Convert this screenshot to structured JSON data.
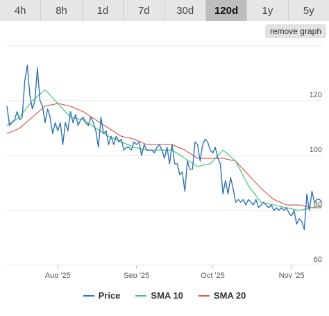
{
  "tabs": [
    {
      "label": "4h",
      "active": false
    },
    {
      "label": "8h",
      "active": false
    },
    {
      "label": "1d",
      "active": false
    },
    {
      "label": "7d",
      "active": false
    },
    {
      "label": "30d",
      "active": false
    },
    {
      "label": "120d",
      "active": true
    },
    {
      "label": "1y",
      "active": false
    },
    {
      "label": "5y",
      "active": false
    }
  ],
  "remove_graph_label": "remove graph",
  "chart_data": {
    "type": "line",
    "title": "",
    "xlabel": "",
    "ylabel": "",
    "ylim": [
      60,
      140
    ],
    "y_ticks": [
      60,
      80,
      100,
      120
    ],
    "x_ticks": [
      {
        "label": "Aug '25",
        "day": 20
      },
      {
        "label": "Sep '25",
        "day": 51
      },
      {
        "label": "Oct '25",
        "day": 81
      },
      {
        "label": "Nov '25",
        "day": 112
      }
    ],
    "x_range_days": [
      0,
      124
    ],
    "grid": true,
    "legend_position": "bottom",
    "series": [
      {
        "name": "Price",
        "color": "#2f72b4",
        "x": [
          0,
          1,
          2,
          3,
          4,
          5,
          6,
          7,
          8,
          9,
          10,
          11,
          12,
          13,
          14,
          15,
          16,
          17,
          18,
          19,
          20,
          21,
          22,
          23,
          24,
          25,
          26,
          27,
          28,
          29,
          30,
          31,
          32,
          33,
          34,
          35,
          36,
          37,
          38,
          39,
          40,
          41,
          42,
          43,
          44,
          45,
          46,
          47,
          48,
          49,
          50,
          51,
          52,
          53,
          54,
          55,
          56,
          57,
          58,
          59,
          60,
          61,
          62,
          63,
          64,
          65,
          66,
          67,
          68,
          69,
          70,
          71,
          72,
          73,
          74,
          75,
          76,
          77,
          78,
          79,
          80,
          81,
          82,
          83,
          84,
          85,
          86,
          87,
          88,
          89,
          90,
          91,
          92,
          93,
          94,
          95,
          96,
          97,
          98,
          99,
          100,
          101,
          102,
          103,
          104,
          105,
          106,
          107,
          108,
          109,
          110,
          111,
          112,
          113,
          114,
          115,
          116,
          117,
          118,
          119,
          120,
          121,
          122,
          123,
          124
        ],
        "values": [
          118,
          111,
          112,
          113,
          116,
          113,
          114,
          127,
          133,
          122,
          117,
          120,
          132,
          120,
          118,
          112,
          117,
          114,
          108,
          112,
          109,
          112,
          104,
          112,
          109,
          116,
          112,
          115,
          111,
          113,
          114,
          112,
          111,
          114,
          112,
          109,
          103,
          114,
          108,
          109,
          104,
          107,
          104,
          107,
          105,
          106,
          102,
          103,
          103,
          102,
          105,
          104,
          105,
          100,
          104,
          102,
          102,
          102,
          101,
          103,
          104,
          102,
          99,
          103,
          97,
          104,
          97,
          97,
          93,
          94,
          87,
          98,
          95,
          95,
          105,
          104,
          98,
          104,
          106,
          105,
          102,
          101,
          103,
          99,
          97,
          86,
          91,
          86,
          92,
          88,
          83,
          84,
          83,
          84,
          82,
          84,
          83,
          82,
          84,
          81,
          82,
          83,
          82,
          81,
          82,
          80,
          81,
          80,
          81,
          80,
          81,
          79,
          78,
          80,
          75,
          77,
          76,
          73,
          86,
          80,
          87,
          83,
          84,
          84,
          83
        ],
        "show_markers": false
      },
      {
        "name": "SMA 10",
        "color": "#3fc47a",
        "x": [
          0,
          5,
          10,
          15,
          20,
          25,
          30,
          35,
          40,
          45,
          50,
          55,
          60,
          65,
          70,
          75,
          80,
          85,
          90,
          95,
          100,
          105,
          110,
          115,
          120,
          124
        ],
        "values": [
          111,
          114,
          120,
          124,
          119,
          114,
          113,
          110,
          107,
          105,
          103,
          102,
          102,
          102,
          99,
          96,
          97,
          102,
          98,
          89,
          83,
          82,
          81,
          80,
          81,
          82
        ]
      },
      {
        "name": "SMA 20",
        "color": "#e05a4b",
        "x": [
          0,
          5,
          10,
          15,
          20,
          25,
          30,
          35,
          40,
          45,
          50,
          55,
          60,
          65,
          70,
          75,
          80,
          85,
          90,
          95,
          100,
          105,
          110,
          115,
          120,
          124
        ],
        "values": [
          108,
          110,
          114,
          118,
          119,
          118,
          116,
          113,
          110,
          107,
          106,
          104,
          104,
          104,
          102,
          99,
          99,
          99,
          98,
          93,
          88,
          84,
          82,
          82,
          81,
          81
        ]
      }
    ]
  }
}
